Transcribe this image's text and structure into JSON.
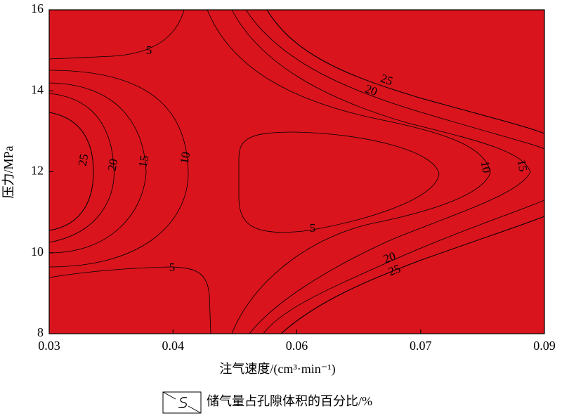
{
  "chart_data": {
    "type": "contour",
    "xlabel": "注气速度/(cm³·min⁻¹)",
    "ylabel": "压力/MPa",
    "x_tick_labels": [
      "0.03",
      "0.04",
      "0.06",
      "0.07",
      "0.09"
    ],
    "ylim": [
      8,
      16
    ],
    "yticks": [
      8,
      10,
      12,
      14,
      16
    ],
    "levels": [
      5,
      10,
      15,
      20,
      25
    ],
    "fill_colors": [
      "#1f4e9c",
      "#4a6fc1",
      "#7cbb2c",
      "#f0d84a",
      "#d9141c"
    ],
    "legend_label": "储气量占孔隙体积的百分比/%"
  }
}
